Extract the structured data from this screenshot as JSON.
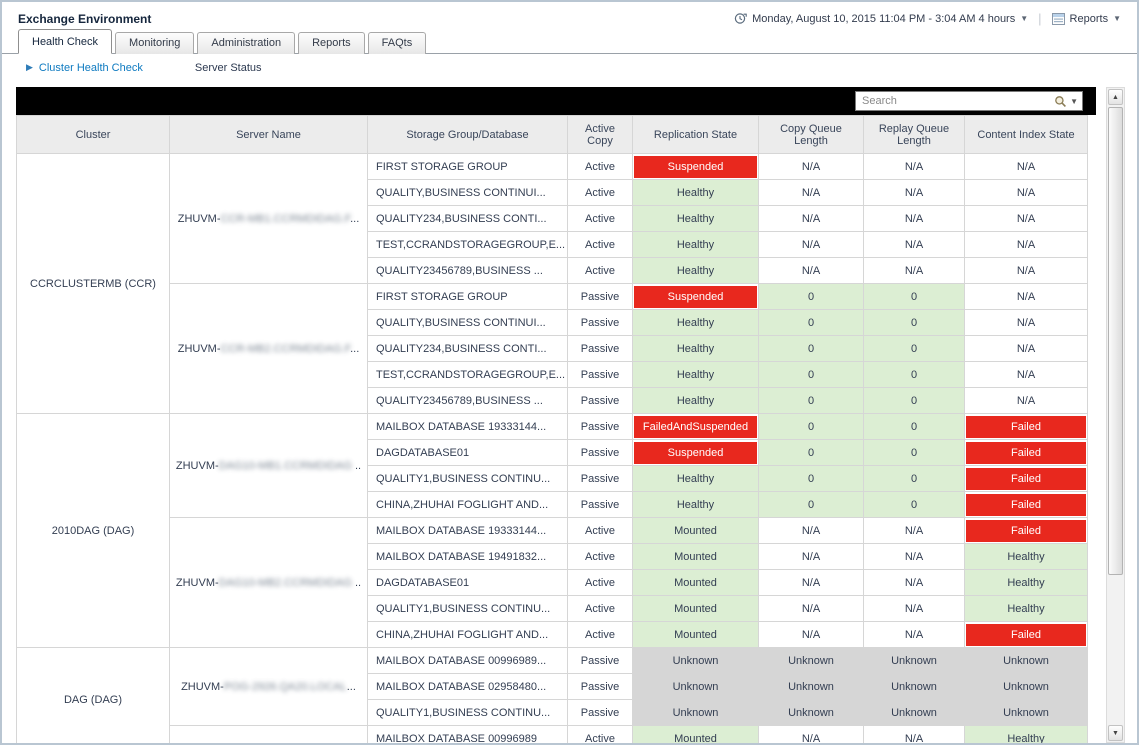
{
  "window": {
    "title": "Exchange Environment"
  },
  "header": {
    "time_range": "Monday, August 10, 2015 11:04 PM - 3:04 AM 4 hours",
    "reports_label": "Reports",
    "icons": [
      "clock-icon",
      "dropdown-caret",
      "report-table-icon"
    ]
  },
  "tabs": [
    {
      "label": "Health Check",
      "active": true
    },
    {
      "label": "Monitoring",
      "active": false
    },
    {
      "label": "Administration",
      "active": false
    },
    {
      "label": "Reports",
      "active": false
    },
    {
      "label": "FAQts",
      "active": false
    }
  ],
  "subnav": {
    "breadcrumb_arrow": "▶",
    "breadcrumb": "Cluster Health Check",
    "secondary": "Server Status"
  },
  "toolbar": {
    "search_placeholder": "Search"
  },
  "colors": {
    "status_red": "#e8281e",
    "status_green": "#dceed3",
    "status_gray": "#d6d6d6",
    "link_blue": "#0e7ac0"
  },
  "table": {
    "columns": [
      "Cluster",
      "Server Name",
      "Storage Group/Database",
      "Active Copy",
      "Replication State",
      "Copy Queue Length",
      "Replay Queue Length",
      "Content Index State"
    ],
    "groups": [
      {
        "cluster": "CCRCLUSTERMB (CCR)",
        "servers": [
          {
            "name_prefix": "ZHUVM-",
            "name_redacted": "CCR-MB1.CCRMDIDAG.F",
            "name_suffix": "...",
            "rows": [
              {
                "db": "FIRST STORAGE GROUP",
                "copy": "Active",
                "repl": [
                  "Suspended",
                  "red"
                ],
                "cq": [
                  "N/A",
                  "plain"
                ],
                "rq": [
                  "N/A",
                  "plain"
                ],
                "ci": [
                  "N/A",
                  "plain"
                ]
              },
              {
                "db": "QUALITY,BUSINESS CONTINUI...",
                "copy": "Active",
                "repl": [
                  "Healthy",
                  "green"
                ],
                "cq": [
                  "N/A",
                  "plain"
                ],
                "rq": [
                  "N/A",
                  "plain"
                ],
                "ci": [
                  "N/A",
                  "plain"
                ]
              },
              {
                "db": "QUALITY234,BUSINESS CONTI...",
                "copy": "Active",
                "repl": [
                  "Healthy",
                  "green"
                ],
                "cq": [
                  "N/A",
                  "plain"
                ],
                "rq": [
                  "N/A",
                  "plain"
                ],
                "ci": [
                  "N/A",
                  "plain"
                ]
              },
              {
                "db": "TEST,CCRANDSTORAGEGROUP,E...",
                "copy": "Active",
                "repl": [
                  "Healthy",
                  "green"
                ],
                "cq": [
                  "N/A",
                  "plain"
                ],
                "rq": [
                  "N/A",
                  "plain"
                ],
                "ci": [
                  "N/A",
                  "plain"
                ]
              },
              {
                "db": "QUALITY23456789,BUSINESS ...",
                "copy": "Active",
                "repl": [
                  "Healthy",
                  "green"
                ],
                "cq": [
                  "N/A",
                  "plain"
                ],
                "rq": [
                  "N/A",
                  "plain"
                ],
                "ci": [
                  "N/A",
                  "plain"
                ]
              }
            ]
          },
          {
            "name_prefix": "ZHUVM-",
            "name_redacted": "CCR-MB2.CCRMDIDAG.F",
            "name_suffix": "...",
            "rows": [
              {
                "db": "FIRST STORAGE GROUP",
                "copy": "Passive",
                "repl": [
                  "Suspended",
                  "red"
                ],
                "cq": [
                  "0",
                  "green"
                ],
                "rq": [
                  "0",
                  "green"
                ],
                "ci": [
                  "N/A",
                  "plain"
                ]
              },
              {
                "db": "QUALITY,BUSINESS CONTINUI...",
                "copy": "Passive",
                "repl": [
                  "Healthy",
                  "green"
                ],
                "cq": [
                  "0",
                  "green"
                ],
                "rq": [
                  "0",
                  "green"
                ],
                "ci": [
                  "N/A",
                  "plain"
                ]
              },
              {
                "db": "QUALITY234,BUSINESS CONTI...",
                "copy": "Passive",
                "repl": [
                  "Healthy",
                  "green"
                ],
                "cq": [
                  "0",
                  "green"
                ],
                "rq": [
                  "0",
                  "green"
                ],
                "ci": [
                  "N/A",
                  "plain"
                ]
              },
              {
                "db": "TEST,CCRANDSTORAGEGROUP,E...",
                "copy": "Passive",
                "repl": [
                  "Healthy",
                  "green"
                ],
                "cq": [
                  "0",
                  "green"
                ],
                "rq": [
                  "0",
                  "green"
                ],
                "ci": [
                  "N/A",
                  "plain"
                ]
              },
              {
                "db": "QUALITY23456789,BUSINESS ...",
                "copy": "Passive",
                "repl": [
                  "Healthy",
                  "green"
                ],
                "cq": [
                  "0",
                  "green"
                ],
                "rq": [
                  "0",
                  "green"
                ],
                "ci": [
                  "N/A",
                  "plain"
                ]
              }
            ]
          }
        ]
      },
      {
        "cluster": "2010DAG (DAG)",
        "servers": [
          {
            "name_prefix": "ZHUVM-",
            "name_redacted": "DAG10-MB1.CCRMDIDAG",
            "name_suffix": " ..",
            "rows": [
              {
                "db": "MAILBOX DATABASE 19333144...",
                "copy": "Passive",
                "repl": [
                  "FailedAndSuspended",
                  "red"
                ],
                "cq": [
                  "0",
                  "green"
                ],
                "rq": [
                  "0",
                  "green"
                ],
                "ci": [
                  "Failed",
                  "red"
                ]
              },
              {
                "db": "DAGDATABASE01",
                "copy": "Passive",
                "repl": [
                  "Suspended",
                  "red"
                ],
                "cq": [
                  "0",
                  "green"
                ],
                "rq": [
                  "0",
                  "green"
                ],
                "ci": [
                  "Failed",
                  "red"
                ]
              },
              {
                "db": "QUALITY1,BUSINESS CONTINU...",
                "copy": "Passive",
                "repl": [
                  "Healthy",
                  "green"
                ],
                "cq": [
                  "0",
                  "green"
                ],
                "rq": [
                  "0",
                  "green"
                ],
                "ci": [
                  "Failed",
                  "red"
                ]
              },
              {
                "db": "CHINA,ZHUHAI FOGLIGHT AND...",
                "copy": "Passive",
                "repl": [
                  "Healthy",
                  "green"
                ],
                "cq": [
                  "0",
                  "green"
                ],
                "rq": [
                  "0",
                  "green"
                ],
                "ci": [
                  "Failed",
                  "red"
                ]
              }
            ]
          },
          {
            "name_prefix": "ZHUVM-",
            "name_redacted": "DAG10-MB2.CCRMDIDAG",
            "name_suffix": " ..",
            "rows": [
              {
                "db": "MAILBOX DATABASE 19333144...",
                "copy": "Active",
                "repl": [
                  "Mounted",
                  "green"
                ],
                "cq": [
                  "N/A",
                  "plain"
                ],
                "rq": [
                  "N/A",
                  "plain"
                ],
                "ci": [
                  "Failed",
                  "red"
                ]
              },
              {
                "db": "MAILBOX DATABASE 19491832...",
                "copy": "Active",
                "repl": [
                  "Mounted",
                  "green"
                ],
                "cq": [
                  "N/A",
                  "plain"
                ],
                "rq": [
                  "N/A",
                  "plain"
                ],
                "ci": [
                  "Healthy",
                  "green"
                ]
              },
              {
                "db": "DAGDATABASE01",
                "copy": "Active",
                "repl": [
                  "Mounted",
                  "green"
                ],
                "cq": [
                  "N/A",
                  "plain"
                ],
                "rq": [
                  "N/A",
                  "plain"
                ],
                "ci": [
                  "Healthy",
                  "green"
                ]
              },
              {
                "db": "QUALITY1,BUSINESS CONTINU...",
                "copy": "Active",
                "repl": [
                  "Mounted",
                  "green"
                ],
                "cq": [
                  "N/A",
                  "plain"
                ],
                "rq": [
                  "N/A",
                  "plain"
                ],
                "ci": [
                  "Healthy",
                  "green"
                ]
              },
              {
                "db": "CHINA,ZHUHAI FOGLIGHT AND...",
                "copy": "Active",
                "repl": [
                  "Mounted",
                  "green"
                ],
                "cq": [
                  "N/A",
                  "plain"
                ],
                "rq": [
                  "N/A",
                  "plain"
                ],
                "ci": [
                  "Failed",
                  "red"
                ]
              }
            ]
          }
        ]
      },
      {
        "cluster": "DAG (DAG)",
        "servers": [
          {
            "name_prefix": "ZHUVM-",
            "name_redacted": "POG-2926.QA20.LOCAL",
            "name_suffix": "...",
            "rows": [
              {
                "db": "MAILBOX DATABASE 00996989...",
                "copy": "Passive",
                "repl": [
                  "Unknown",
                  "gray"
                ],
                "cq": [
                  "Unknown",
                  "gray"
                ],
                "rq": [
                  "Unknown",
                  "gray"
                ],
                "ci": [
                  "Unknown",
                  "gray"
                ]
              },
              {
                "db": "MAILBOX DATABASE 02958480...",
                "copy": "Passive",
                "repl": [
                  "Unknown",
                  "gray"
                ],
                "cq": [
                  "Unknown",
                  "gray"
                ],
                "rq": [
                  "Unknown",
                  "gray"
                ],
                "ci": [
                  "Unknown",
                  "gray"
                ]
              },
              {
                "db": "QUALITY1,BUSINESS CONTINU...",
                "copy": "Passive",
                "repl": [
                  "Unknown",
                  "gray"
                ],
                "cq": [
                  "Unknown",
                  "gray"
                ],
                "rq": [
                  "Unknown",
                  "gray"
                ],
                "ci": [
                  "Unknown",
                  "gray"
                ]
              }
            ]
          },
          {
            "name_prefix": "",
            "name_redacted": "",
            "name_suffix": "",
            "rows": [
              {
                "db": "MAILBOX DATABASE 00996989",
                "copy": "Active",
                "repl": [
                  "Mounted",
                  "green"
                ],
                "cq": [
                  "N/A",
                  "plain"
                ],
                "rq": [
                  "N/A",
                  "plain"
                ],
                "ci": [
                  "Healthy",
                  "green"
                ]
              }
            ]
          }
        ]
      }
    ]
  }
}
